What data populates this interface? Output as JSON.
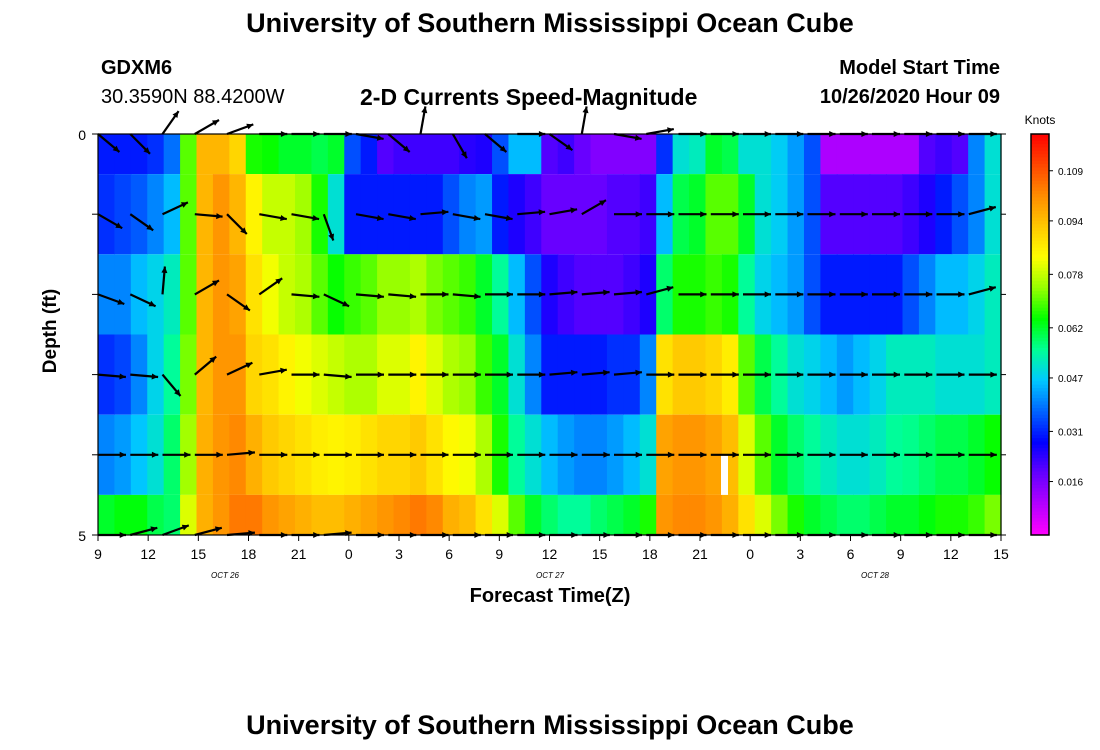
{
  "header": {
    "title": "University of Southern Mississippi Ocean Cube",
    "station_id": "GDXM6",
    "coordinates": "30.3590N 88.4200W",
    "subtitle": "2-D Currents Speed-Magnitude",
    "model_start_label": "Model Start Time",
    "model_start_value": "10/26/2020 Hour 09"
  },
  "footer": {
    "title": "University of Southern Mississippi Ocean Cube"
  },
  "chart_data": {
    "type": "heatmap",
    "title": "2-D Currents Speed-Magnitude",
    "xlabel": "Forecast Time(Z)",
    "ylabel": "Depth (ft)",
    "y_tick_labels": [
      "0",
      "5"
    ],
    "ylim": [
      0,
      5
    ],
    "x_tick_labels": [
      "9",
      "12",
      "15",
      "18",
      "21",
      "0",
      "3",
      "6",
      "9",
      "12",
      "15",
      "18",
      "21",
      "0",
      "3",
      "6",
      "9",
      "12",
      "15"
    ],
    "date_labels": [
      "OCT 26",
      "OCT 27",
      "OCT 28"
    ],
    "xlim_hours": [
      0,
      54
    ],
    "time_step_hours": 1,
    "depth_layers": 5,
    "colorbar": {
      "label": "Knots",
      "ticks": [
        "0.109",
        "0.094",
        "0.078",
        "0.062",
        "0.047",
        "0.031",
        "0.016"
      ],
      "min": 0.0,
      "max": 0.12,
      "colors": [
        "#ff00ff",
        "#b400ff",
        "#6400ff",
        "#0000ff",
        "#0064ff",
        "#00c8ff",
        "#00ff96",
        "#00ff00",
        "#96ff00",
        "#ffff00",
        "#ffc800",
        "#ff8c00",
        "#ff4600",
        "#ff0000"
      ]
    },
    "speed_rows_knots": [
      [
        0.03,
        0.03,
        0.03,
        0.032,
        0.038,
        0.07,
        0.095,
        0.095,
        0.09,
        0.066,
        0.065,
        0.062,
        0.062,
        0.06,
        0.062,
        0.035,
        0.03,
        0.02,
        0.022,
        0.022,
        0.022,
        0.022,
        0.024,
        0.025,
        0.035,
        0.045,
        0.045,
        0.02,
        0.022,
        0.018,
        0.015,
        0.015,
        0.015,
        0.015,
        0.032,
        0.05,
        0.052,
        0.062,
        0.06,
        0.05,
        0.05,
        0.047,
        0.042,
        0.035,
        0.01,
        0.01,
        0.01,
        0.01,
        0.01,
        0.01,
        0.02,
        0.022,
        0.02,
        0.04,
        0.05
      ],
      [
        0.032,
        0.034,
        0.036,
        0.04,
        0.045,
        0.07,
        0.095,
        0.1,
        0.095,
        0.085,
        0.078,
        0.078,
        0.075,
        0.066,
        0.05,
        0.03,
        0.03,
        0.03,
        0.03,
        0.03,
        0.03,
        0.035,
        0.04,
        0.042,
        0.03,
        0.025,
        0.022,
        0.018,
        0.018,
        0.018,
        0.018,
        0.02,
        0.02,
        0.022,
        0.045,
        0.06,
        0.062,
        0.07,
        0.07,
        0.062,
        0.05,
        0.047,
        0.042,
        0.035,
        0.02,
        0.02,
        0.02,
        0.02,
        0.02,
        0.022,
        0.025,
        0.03,
        0.035,
        0.04,
        0.05
      ],
      [
        0.04,
        0.04,
        0.045,
        0.048,
        0.052,
        0.07,
        0.095,
        0.1,
        0.098,
        0.088,
        0.082,
        0.078,
        0.076,
        0.07,
        0.065,
        0.068,
        0.07,
        0.074,
        0.074,
        0.076,
        0.072,
        0.07,
        0.068,
        0.062,
        0.055,
        0.045,
        0.035,
        0.025,
        0.022,
        0.02,
        0.02,
        0.02,
        0.022,
        0.025,
        0.058,
        0.066,
        0.066,
        0.068,
        0.066,
        0.055,
        0.048,
        0.045,
        0.042,
        0.035,
        0.03,
        0.03,
        0.03,
        0.03,
        0.03,
        0.035,
        0.04,
        0.045,
        0.045,
        0.048,
        0.052
      ],
      [
        0.032,
        0.034,
        0.04,
        0.048,
        0.055,
        0.072,
        0.095,
        0.1,
        0.1,
        0.09,
        0.088,
        0.085,
        0.082,
        0.08,
        0.078,
        0.076,
        0.076,
        0.08,
        0.08,
        0.085,
        0.08,
        0.076,
        0.074,
        0.068,
        0.062,
        0.05,
        0.04,
        0.03,
        0.03,
        0.03,
        0.03,
        0.032,
        0.032,
        0.04,
        0.088,
        0.092,
        0.092,
        0.09,
        0.086,
        0.07,
        0.06,
        0.055,
        0.05,
        0.048,
        0.045,
        0.042,
        0.045,
        0.048,
        0.052,
        0.052,
        0.052,
        0.05,
        0.05,
        0.05,
        0.052
      ],
      [
        0.04,
        0.042,
        0.046,
        0.05,
        0.058,
        0.075,
        0.096,
        0.1,
        0.102,
        0.096,
        0.092,
        0.09,
        0.088,
        0.086,
        0.085,
        0.086,
        0.088,
        0.09,
        0.09,
        0.092,
        0.088,
        0.084,
        0.082,
        0.076,
        0.066,
        0.055,
        0.05,
        0.045,
        0.042,
        0.04,
        0.04,
        0.042,
        0.045,
        0.05,
        0.098,
        0.1,
        0.1,
        0.098,
        0.094,
        0.08,
        0.07,
        0.062,
        0.058,
        0.055,
        0.052,
        0.05,
        0.05,
        0.052,
        0.055,
        0.056,
        0.058,
        0.06,
        0.06,
        0.062,
        0.065
      ],
      [
        0.062,
        0.064,
        0.064,
        0.06,
        0.058,
        0.08,
        0.096,
        0.1,
        0.104,
        0.104,
        0.1,
        0.098,
        0.096,
        0.094,
        0.094,
        0.096,
        0.098,
        0.1,
        0.102,
        0.104,
        0.102,
        0.096,
        0.094,
        0.088,
        0.08,
        0.07,
        0.062,
        0.058,
        0.055,
        0.055,
        0.058,
        0.06,
        0.062,
        0.066,
        0.1,
        0.102,
        0.102,
        0.1,
        0.096,
        0.088,
        0.08,
        0.072,
        0.066,
        0.062,
        0.06,
        0.058,
        0.058,
        0.06,
        0.062,
        0.062,
        0.064,
        0.066,
        0.066,
        0.068,
        0.072
      ]
    ],
    "vector_angles_deg": [
      [
        40,
        45,
        -55,
        -30,
        -20,
        0,
        0,
        0,
        10,
        40,
        -80,
        60,
        40,
        0,
        35,
        -80,
        10,
        -10,
        0,
        0,
        0,
        0,
        0,
        0,
        0,
        0,
        0,
        0,
        0
      ],
      [
        30,
        35,
        -25,
        5,
        45,
        10,
        10,
        70,
        10,
        10,
        -5,
        10,
        10,
        -5,
        -10,
        -30,
        0,
        0,
        0,
        0,
        0,
        0,
        0,
        0,
        0,
        0,
        0,
        -15,
        20
      ],
      [
        20,
        25,
        -85,
        -30,
        35,
        -35,
        5,
        25,
        5,
        5,
        0,
        5,
        0,
        0,
        -5,
        -5,
        -5,
        -15,
        0,
        0,
        0,
        0,
        0,
        0,
        0,
        0,
        0,
        -15,
        35
      ],
      [
        5,
        5,
        50,
        -40,
        -25,
        -10,
        0,
        5,
        0,
        0,
        0,
        0,
        0,
        0,
        -5,
        -5,
        -5,
        0,
        0,
        0,
        0,
        0,
        0,
        0,
        0,
        0,
        0,
        0,
        0
      ],
      [
        0,
        0,
        0,
        0,
        -5,
        0,
        0,
        0,
        0,
        0,
        0,
        0,
        0,
        0,
        0,
        0,
        0,
        0,
        0,
        0,
        0,
        0,
        0,
        0,
        0,
        0,
        0,
        0,
        0
      ],
      [
        0,
        -15,
        -20,
        -15,
        -5,
        0,
        0,
        -5,
        0,
        0,
        0,
        0,
        0,
        0,
        0,
        0,
        0,
        0,
        0,
        0,
        0,
        0,
        0,
        0,
        0,
        0,
        0,
        0,
        0
      ]
    ],
    "missing_cells": [
      {
        "row": 5,
        "col": 37
      }
    ]
  }
}
